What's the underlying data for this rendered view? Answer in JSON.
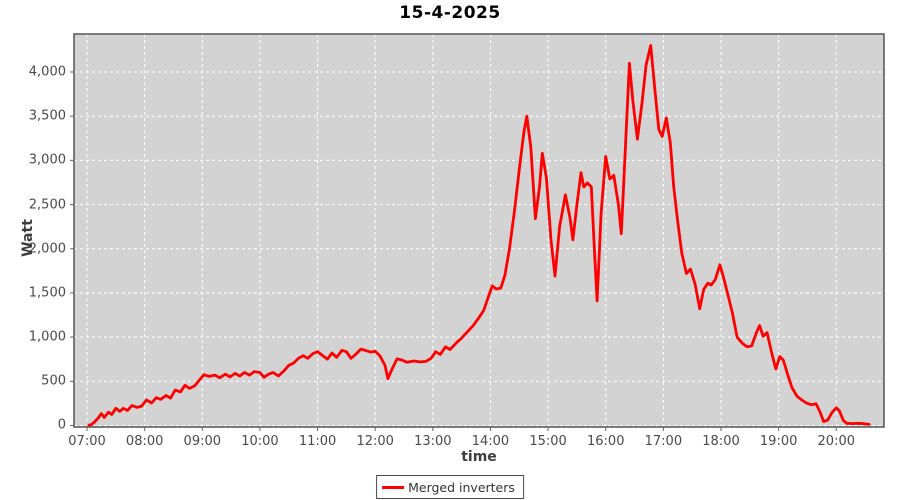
{
  "chart_data": {
    "type": "line",
    "title": "15-4-2025",
    "xlabel": "time",
    "ylabel": "Watt",
    "x_unit": "hour_of_day_decimal",
    "y_unit": "W",
    "xlim": [
      6.774,
      20.828
    ],
    "ylim": [
      -17,
      4430
    ],
    "grid": "white dashed gridlines on gray plot background",
    "legend_position": "bottom-center",
    "plot_bg_color": "#d3d3d3",
    "plot_border_color": "#555555",
    "gridline_color": "#ffffff",
    "tick_color": "#666666",
    "xticks": [
      {
        "v": 7,
        "label": "07:00"
      },
      {
        "v": 8,
        "label": "08:00"
      },
      {
        "v": 9,
        "label": "09:00"
      },
      {
        "v": 10,
        "label": "10:00"
      },
      {
        "v": 11,
        "label": "11:00"
      },
      {
        "v": 12,
        "label": "12:00"
      },
      {
        "v": 13,
        "label": "13:00"
      },
      {
        "v": 14,
        "label": "14:00"
      },
      {
        "v": 15,
        "label": "15:00"
      },
      {
        "v": 16,
        "label": "16:00"
      },
      {
        "v": 17,
        "label": "17:00"
      },
      {
        "v": 18,
        "label": "18:00"
      },
      {
        "v": 19,
        "label": "19:00"
      },
      {
        "v": 20,
        "label": "20:00"
      }
    ],
    "yticks": [
      {
        "v": 0,
        "label": "0"
      },
      {
        "v": 500,
        "label": "500"
      },
      {
        "v": 1000,
        "label": "1,000"
      },
      {
        "v": 1500,
        "label": "1,500"
      },
      {
        "v": 2000,
        "label": "2,000"
      },
      {
        "v": 2500,
        "label": "2,500"
      },
      {
        "v": 3000,
        "label": "3,000"
      },
      {
        "v": 3500,
        "label": "3,500"
      },
      {
        "v": 4000,
        "label": "4,000"
      }
    ],
    "series": [
      {
        "name": "Merged inverters",
        "color": "#ff0000",
        "line_width": 2.8,
        "points": [
          [
            7.03,
            5
          ],
          [
            7.08,
            10
          ],
          [
            7.13,
            40
          ],
          [
            7.2,
            90
          ],
          [
            7.25,
            135
          ],
          [
            7.3,
            90
          ],
          [
            7.37,
            150
          ],
          [
            7.43,
            125
          ],
          [
            7.5,
            195
          ],
          [
            7.57,
            160
          ],
          [
            7.63,
            195
          ],
          [
            7.7,
            170
          ],
          [
            7.78,
            225
          ],
          [
            7.87,
            205
          ],
          [
            7.95,
            220
          ],
          [
            8.03,
            290
          ],
          [
            8.12,
            255
          ],
          [
            8.2,
            315
          ],
          [
            8.28,
            295
          ],
          [
            8.37,
            340
          ],
          [
            8.45,
            310
          ],
          [
            8.53,
            400
          ],
          [
            8.62,
            380
          ],
          [
            8.7,
            455
          ],
          [
            8.78,
            420
          ],
          [
            8.87,
            450
          ],
          [
            8.95,
            515
          ],
          [
            9.03,
            575
          ],
          [
            9.12,
            555
          ],
          [
            9.22,
            570
          ],
          [
            9.3,
            540
          ],
          [
            9.4,
            580
          ],
          [
            9.48,
            550
          ],
          [
            9.57,
            590
          ],
          [
            9.65,
            560
          ],
          [
            9.73,
            600
          ],
          [
            9.82,
            570
          ],
          [
            9.9,
            610
          ],
          [
            10.0,
            600
          ],
          [
            10.07,
            545
          ],
          [
            10.15,
            580
          ],
          [
            10.23,
            600
          ],
          [
            10.32,
            560
          ],
          [
            10.42,
            620
          ],
          [
            10.5,
            680
          ],
          [
            10.58,
            705
          ],
          [
            10.67,
            760
          ],
          [
            10.75,
            790
          ],
          [
            10.83,
            760
          ],
          [
            10.92,
            815
          ],
          [
            11.0,
            835
          ],
          [
            11.08,
            795
          ],
          [
            11.17,
            750
          ],
          [
            11.25,
            820
          ],
          [
            11.33,
            770
          ],
          [
            11.42,
            850
          ],
          [
            11.5,
            835
          ],
          [
            11.58,
            760
          ],
          [
            11.67,
            810
          ],
          [
            11.75,
            865
          ],
          [
            11.83,
            850
          ],
          [
            11.92,
            830
          ],
          [
            12.0,
            840
          ],
          [
            12.08,
            790
          ],
          [
            12.17,
            680
          ],
          [
            12.22,
            530
          ],
          [
            12.3,
            650
          ],
          [
            12.38,
            755
          ],
          [
            12.47,
            740
          ],
          [
            12.55,
            715
          ],
          [
            12.67,
            730
          ],
          [
            12.78,
            720
          ],
          [
            12.88,
            725
          ],
          [
            12.97,
            760
          ],
          [
            13.05,
            835
          ],
          [
            13.13,
            805
          ],
          [
            13.22,
            890
          ],
          [
            13.3,
            860
          ],
          [
            13.4,
            930
          ],
          [
            13.5,
            990
          ],
          [
            13.6,
            1060
          ],
          [
            13.7,
            1130
          ],
          [
            13.8,
            1220
          ],
          [
            13.88,
            1300
          ],
          [
            13.95,
            1430
          ],
          [
            14.03,
            1580
          ],
          [
            14.1,
            1545
          ],
          [
            14.18,
            1555
          ],
          [
            14.25,
            1700
          ],
          [
            14.33,
            2000
          ],
          [
            14.42,
            2450
          ],
          [
            14.5,
            2900
          ],
          [
            14.58,
            3320
          ],
          [
            14.63,
            3500
          ],
          [
            14.7,
            3150
          ],
          [
            14.78,
            2340
          ],
          [
            14.85,
            2700
          ],
          [
            14.9,
            3080
          ],
          [
            14.97,
            2800
          ],
          [
            15.05,
            2100
          ],
          [
            15.12,
            1690
          ],
          [
            15.2,
            2250
          ],
          [
            15.3,
            2610
          ],
          [
            15.38,
            2350
          ],
          [
            15.43,
            2100
          ],
          [
            15.5,
            2500
          ],
          [
            15.57,
            2860
          ],
          [
            15.62,
            2700
          ],
          [
            15.68,
            2745
          ],
          [
            15.75,
            2700
          ],
          [
            15.81,
            1900
          ],
          [
            15.85,
            1410
          ],
          [
            15.92,
            2400
          ],
          [
            16.0,
            3045
          ],
          [
            16.07,
            2790
          ],
          [
            16.14,
            2830
          ],
          [
            16.22,
            2500
          ],
          [
            16.27,
            2170
          ],
          [
            16.33,
            3000
          ],
          [
            16.41,
            4100
          ],
          [
            16.47,
            3680
          ],
          [
            16.55,
            3240
          ],
          [
            16.63,
            3650
          ],
          [
            16.7,
            4080
          ],
          [
            16.78,
            4300
          ],
          [
            16.85,
            3820
          ],
          [
            16.92,
            3350
          ],
          [
            16.98,
            3270
          ],
          [
            17.05,
            3480
          ],
          [
            17.12,
            3200
          ],
          [
            17.18,
            2700
          ],
          [
            17.25,
            2300
          ],
          [
            17.32,
            1950
          ],
          [
            17.4,
            1720
          ],
          [
            17.47,
            1770
          ],
          [
            17.55,
            1600
          ],
          [
            17.63,
            1320
          ],
          [
            17.7,
            1540
          ],
          [
            17.77,
            1610
          ],
          [
            17.83,
            1590
          ],
          [
            17.9,
            1650
          ],
          [
            17.98,
            1820
          ],
          [
            18.05,
            1660
          ],
          [
            18.12,
            1480
          ],
          [
            18.2,
            1270
          ],
          [
            18.28,
            1000
          ],
          [
            18.37,
            930
          ],
          [
            18.45,
            890
          ],
          [
            18.53,
            900
          ],
          [
            18.62,
            1060
          ],
          [
            18.67,
            1130
          ],
          [
            18.73,
            1010
          ],
          [
            18.8,
            1050
          ],
          [
            18.88,
            820
          ],
          [
            18.95,
            640
          ],
          [
            19.02,
            780
          ],
          [
            19.08,
            740
          ],
          [
            19.15,
            590
          ],
          [
            19.23,
            430
          ],
          [
            19.32,
            330
          ],
          [
            19.4,
            290
          ],
          [
            19.48,
            255
          ],
          [
            19.57,
            235
          ],
          [
            19.65,
            245
          ],
          [
            19.72,
            150
          ],
          [
            19.78,
            45
          ],
          [
            19.85,
            60
          ],
          [
            19.93,
            150
          ],
          [
            20.0,
            200
          ],
          [
            20.05,
            170
          ],
          [
            20.12,
            60
          ],
          [
            20.18,
            25
          ],
          [
            20.28,
            22
          ],
          [
            20.38,
            25
          ],
          [
            20.48,
            20
          ],
          [
            20.57,
            12
          ]
        ]
      }
    ]
  }
}
